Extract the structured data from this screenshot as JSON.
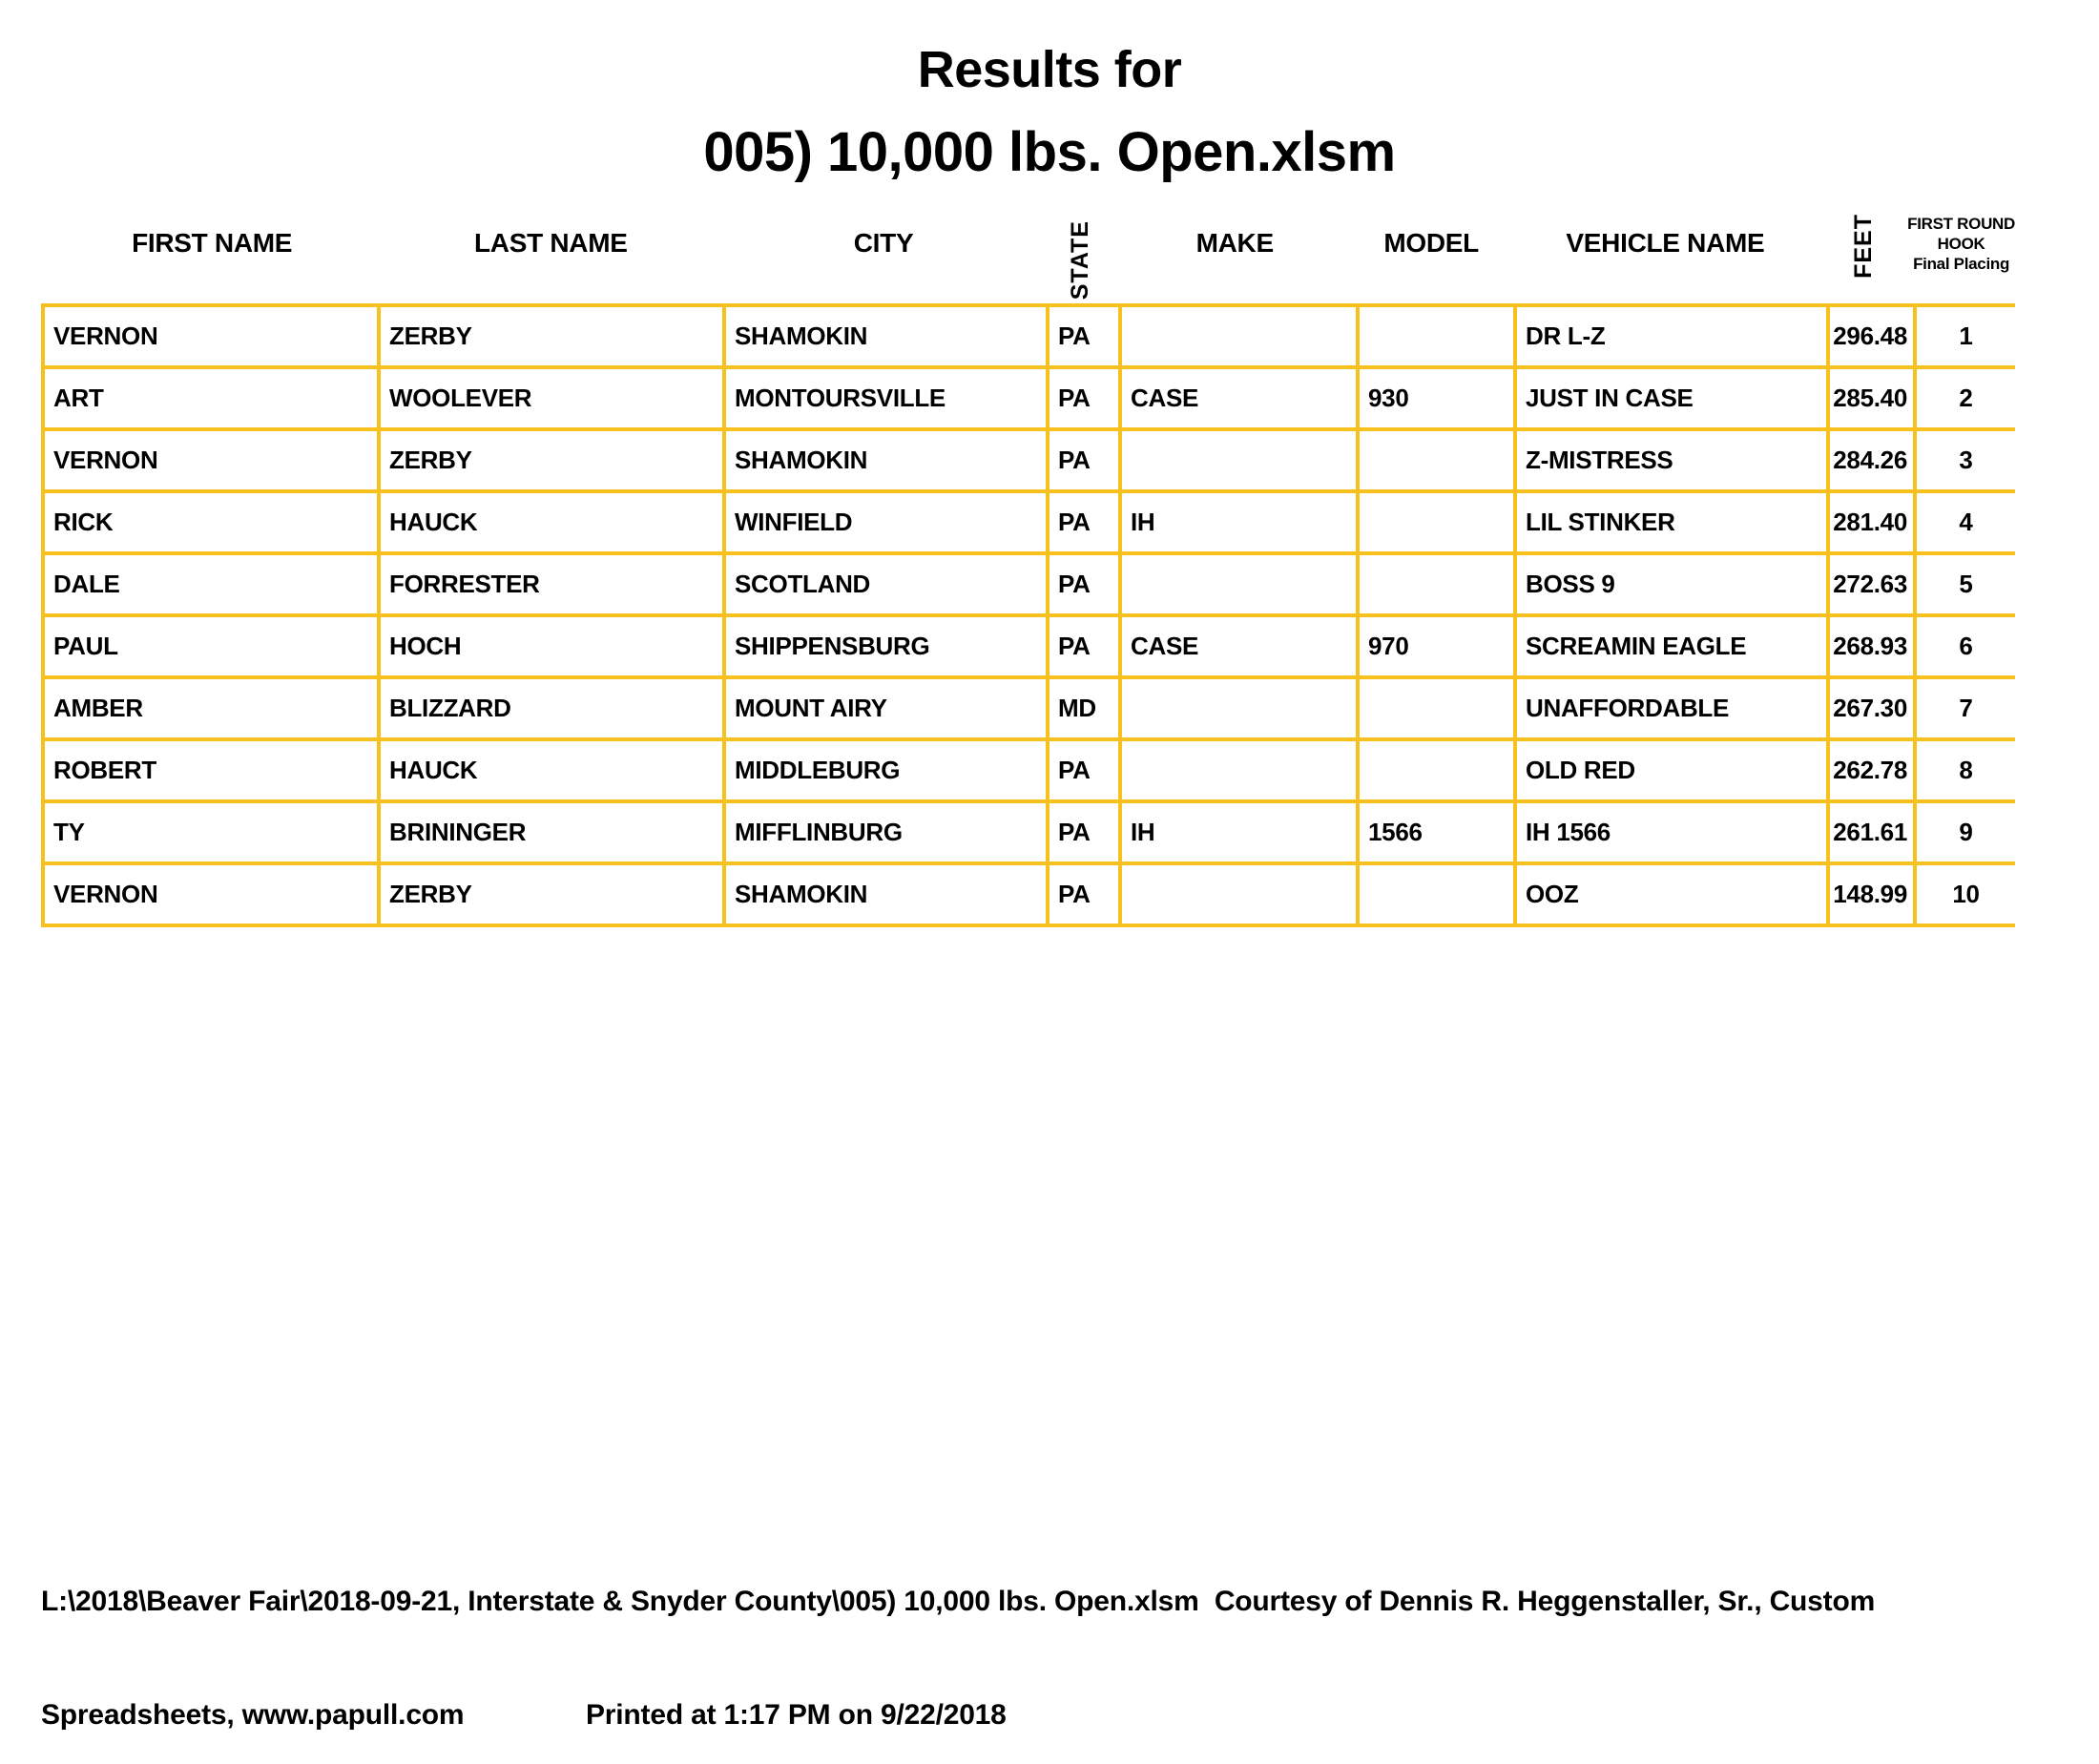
{
  "title": {
    "line1": "Results for",
    "line2": "005) 10,000 lbs. Open.xlsm"
  },
  "colors": {
    "table_border": "#F7C01C",
    "text": "#000000",
    "background": "#FFFFFF"
  },
  "table": {
    "headers": {
      "first_name": "FIRST NAME",
      "last_name": "LAST NAME",
      "city": "CITY",
      "state": "STATE",
      "make": "MAKE",
      "model": "MODEL",
      "vehicle_name": "VEHICLE NAME",
      "feet": "FEET",
      "placing_lines": [
        "FIRST ROUND",
        "HOOK",
        "Final Placing"
      ]
    },
    "rows": [
      {
        "first": "VERNON",
        "last": "ZERBY",
        "city": "SHAMOKIN",
        "state": "PA",
        "make": "",
        "model": "",
        "vehicle": "DR L-Z",
        "feet": "296.48",
        "placing": "1"
      },
      {
        "first": "ART",
        "last": "WOOLEVER",
        "city": "MONTOURSVILLE",
        "state": "PA",
        "make": "CASE",
        "model": "930",
        "vehicle": "JUST IN CASE",
        "feet": "285.40",
        "placing": "2"
      },
      {
        "first": "VERNON",
        "last": "ZERBY",
        "city": "SHAMOKIN",
        "state": "PA",
        "make": "",
        "model": "",
        "vehicle": "Z-MISTRESS",
        "feet": "284.26",
        "placing": "3"
      },
      {
        "first": "RICK",
        "last": "HAUCK",
        "city": "WINFIELD",
        "state": "PA",
        "make": "IH",
        "model": "",
        "vehicle": "LIL STINKER",
        "feet": "281.40",
        "placing": "4"
      },
      {
        "first": "DALE",
        "last": "FORRESTER",
        "city": "SCOTLAND",
        "state": "PA",
        "make": "",
        "model": "",
        "vehicle": "BOSS 9",
        "feet": "272.63",
        "placing": "5"
      },
      {
        "first": "PAUL",
        "last": "HOCH",
        "city": "SHIPPENSBURG",
        "state": "PA",
        "make": "CASE",
        "model": "970",
        "vehicle": "SCREAMIN EAGLE",
        "feet": "268.93",
        "placing": "6"
      },
      {
        "first": "AMBER",
        "last": "BLIZZARD",
        "city": "MOUNT AIRY",
        "state": "MD",
        "make": "",
        "model": "",
        "vehicle": "UNAFFORDABLE",
        "feet": "267.30",
        "placing": "7"
      },
      {
        "first": "ROBERT",
        "last": "HAUCK",
        "city": "MIDDLEBURG",
        "state": "PA",
        "make": "",
        "model": "",
        "vehicle": "OLD RED",
        "feet": "262.78",
        "placing": "8"
      },
      {
        "first": "TY",
        "last": "BRININGER",
        "city": "MIFFLINBURG",
        "state": "PA",
        "make": "IH",
        "model": "1566",
        "vehicle": "IH 1566",
        "feet": "261.61",
        "placing": "9"
      },
      {
        "first": "VERNON",
        "last": "ZERBY",
        "city": "SHAMOKIN",
        "state": "PA",
        "make": "",
        "model": "",
        "vehicle": "OOZ",
        "feet": "148.99",
        "placing": "10"
      }
    ]
  },
  "footer": {
    "line1": "L:\\2018\\Beaver Fair\\2018-09-21, Interstate & Snyder County\\005) 10,000 lbs. Open.xlsm  Courtesy of Dennis R. Heggenstaller, Sr., Custom",
    "line2_left": "Spreadsheets, www.papull.com",
    "line2_right": "Printed at 1:17 PM on 9/22/2018"
  }
}
